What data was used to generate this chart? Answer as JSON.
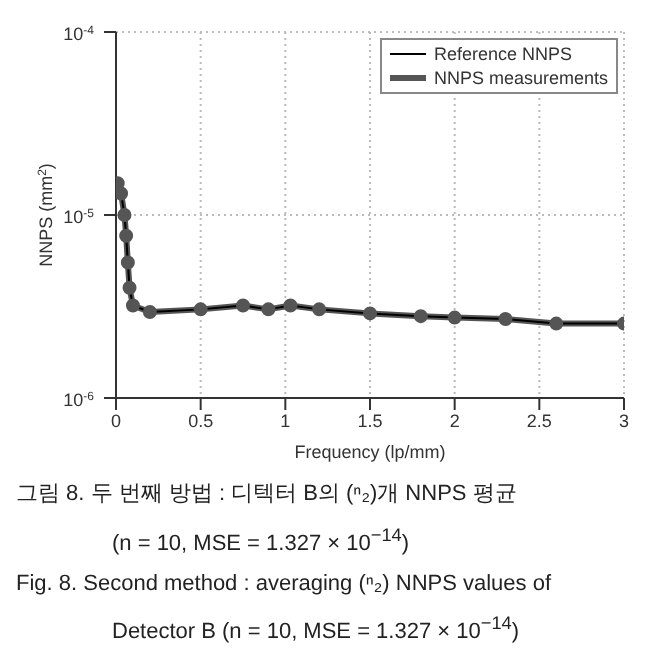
{
  "chart_data": {
    "type": "line",
    "xlabel": "Frequency (lp/mm)",
    "ylabel": "NNPS (mm$^{2}$)",
    "x": [
      0.01,
      0.03,
      0.05,
      0.06,
      0.07,
      0.08,
      0.1,
      0.2,
      0.5,
      0.75,
      0.9,
      1.03,
      1.2,
      1.5,
      1.8,
      2.0,
      2.3,
      2.6,
      3.0
    ],
    "series": [
      {
        "name": "Reference NNPS",
        "color": "#000000",
        "values": [
          1.49e-05,
          1.31e-05,
          1e-05,
          7.7e-06,
          5.5e-06,
          4e-06,
          3.2e-06,
          2.95e-06,
          3.05e-06,
          3.2e-06,
          3.05e-06,
          3.2e-06,
          3.05e-06,
          2.9e-06,
          2.8e-06,
          2.75e-06,
          2.7e-06,
          2.55e-06,
          2.55e-06
        ]
      },
      {
        "name": "NNPS measurements",
        "color": "#555555",
        "marker": "circle",
        "values": [
          1.49e-05,
          1.31e-05,
          1e-05,
          7.7e-06,
          5.5e-06,
          4e-06,
          3.2e-06,
          2.95e-06,
          3.05e-06,
          3.2e-06,
          3.05e-06,
          3.2e-06,
          3.05e-06,
          2.9e-06,
          2.8e-06,
          2.75e-06,
          2.7e-06,
          2.55e-06,
          2.55e-06
        ]
      }
    ],
    "xlim": [
      0,
      3
    ],
    "xticks": [
      0,
      0.5,
      1,
      1.5,
      2,
      2.5,
      3
    ],
    "ylim": [
      1e-06,
      0.0001
    ],
    "yticks": [
      {
        "value": 1e-06,
        "label": "10$^{-6}$"
      },
      {
        "value": 1e-05,
        "label": "10$^{-5}$"
      },
      {
        "value": 0.0001,
        "label": "10$^{-4}$"
      }
    ],
    "log": "y",
    "grid": true,
    "legend": "top right",
    "line_style": "solid",
    "annotations": [
      "그림 8.   두 번째 방법 : 디텍터 B의 (ⁿ₂)개 NNPS 평균",
      "(n = 10,  MSE = 1.327 × 10$^{−14}$)",
      "Fig. 8.   Second method : averaging (ⁿ₂) NNPS values of",
      "Detector B (n = 10,  MSE = 1.327 × 10$^{−14}$)"
    ]
  }
}
